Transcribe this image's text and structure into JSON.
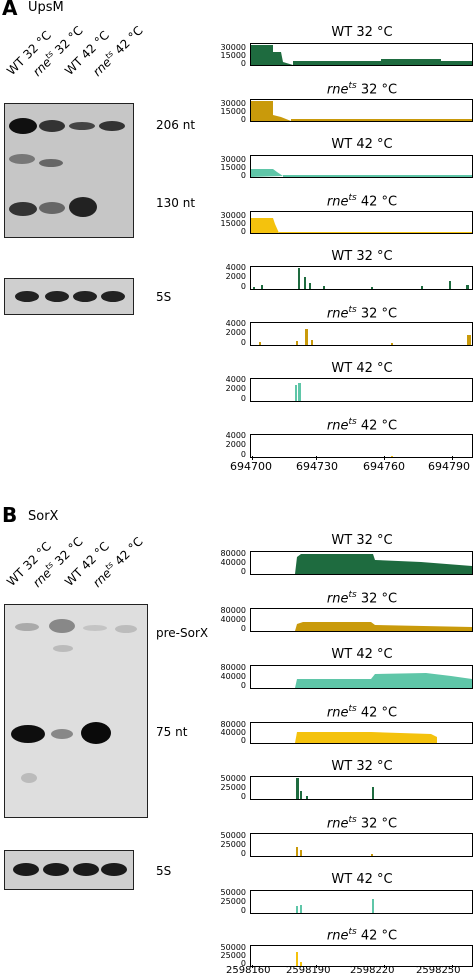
{
  "panelA": {
    "letter": "A",
    "gene": "UpsM",
    "lanes": [
      "WT 32 °C",
      "rne",
      "ts",
      " 32 °C",
      "WT 42 °C",
      "rne",
      "ts",
      " 42 °C"
    ],
    "blot_labels": {
      "top": "206 nt",
      "mid": "130 nt",
      "bottom": "5S"
    },
    "tracks": [
      {
        "pre": "WT 32 °C",
        "italic": "",
        "sup": "",
        "post": ""
      },
      {
        "pre": "",
        "italic": "rne",
        "sup": "ts",
        "post": " 32 °C"
      },
      {
        "pre": "WT 42 °C",
        "italic": "",
        "sup": "",
        "post": ""
      },
      {
        "pre": "",
        "italic": "rne",
        "sup": "ts",
        "post": " 42 °C"
      },
      {
        "pre": "WT 32 °C",
        "italic": "",
        "sup": "",
        "post": ""
      },
      {
        "pre": "",
        "italic": "rne",
        "sup": "ts",
        "post": " 32 °C"
      },
      {
        "pre": "WT 42 °C",
        "italic": "",
        "sup": "",
        "post": ""
      },
      {
        "pre": "",
        "italic": "rne",
        "sup": "ts",
        "post": " 42 °C"
      }
    ],
    "yticks_cov": [
      "30000",
      "15000",
      "0"
    ],
    "yticks_end": [
      "4000",
      "2000",
      "0"
    ],
    "xticks": [
      "694700",
      "694730",
      "694760",
      "694790"
    ]
  },
  "panelB": {
    "letter": "B",
    "gene": "SorX",
    "lanes": [
      "WT 32 °C",
      "rne",
      "ts",
      " 32 °C",
      "WT 42 °C",
      "rne",
      "ts",
      " 42 °C"
    ],
    "blot_labels": {
      "top": "pre-SorX",
      "mid": "75 nt",
      "bottom": "5S"
    },
    "yticks_cov": [
      "80000",
      "40000",
      "0"
    ],
    "yticks_end": [
      "50000",
      "25000",
      "0"
    ],
    "xticks": [
      "2598160",
      "2598190",
      "2598220",
      "2598250"
    ]
  },
  "colors": {
    "wt32": "#1e6b3f",
    "rne32": "#c99a0b",
    "wt42": "#5fc6a8",
    "rne42": "#f4c20d"
  }
}
